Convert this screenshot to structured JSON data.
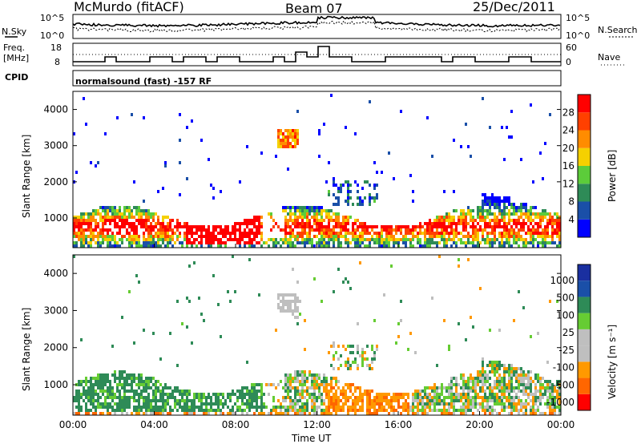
{
  "header": {
    "station": "McMurdo (fitACF)",
    "beam": "Beam 07",
    "date": "25/Dec/2011"
  },
  "top_panels": {
    "noise": {
      "left_label": "N.Sky",
      "right_label": "N.Search",
      "left_ticks": [
        "10^5",
        "10^0"
      ],
      "right_ticks": [
        "10^5",
        "10^0"
      ]
    },
    "freq": {
      "left_label_1": "Freq.",
      "left_label_2": "[MHz]",
      "right_label": "Nave",
      "left_ticks": [
        "18",
        "8"
      ],
      "right_ticks": [
        "60",
        "0"
      ]
    },
    "cpid": {
      "label": "CPID",
      "text": "normalsound (fast) -157 RF"
    }
  },
  "colors": {
    "power_scale": [
      "#0000ff",
      "#1a4fa8",
      "#2e8b57",
      "#5ccc3a",
      "#f5d000",
      "#ff8c00",
      "#ff4000",
      "#ff0000"
    ],
    "velocity_scale": [
      "#ff0000",
      "#ff6600",
      "#ff9900",
      "#bfbfbf",
      "#bfbfbf",
      "#66cc33",
      "#2e8b57",
      "#1a4fa8",
      "#1a2fa0"
    ]
  },
  "chart_data": [
    {
      "type": "heatmap",
      "panel": "power",
      "ylabel": "Slant Range [km]",
      "yticks": [
        "1000",
        "2000",
        "3000",
        "4000"
      ],
      "ylim": [
        180,
        4500
      ],
      "xticks": [
        "00:00",
        "04:00",
        "08:00",
        "12:00",
        "16:00",
        "20:00",
        "00:00"
      ],
      "xlim_hours": [
        0,
        24
      ],
      "colorbar": {
        "label": "Power [dB]",
        "ticks": [
          "4",
          "8",
          "12",
          "16",
          "20",
          "24",
          "28"
        ],
        "range": [
          0,
          32
        ]
      }
    },
    {
      "type": "heatmap",
      "panel": "velocity",
      "ylabel": "Slant Range [km]",
      "yticks": [
        "1000",
        "2000",
        "3000",
        "4000"
      ],
      "ylim": [
        180,
        4500
      ],
      "xticks": [
        "00:00",
        "04:00",
        "08:00",
        "12:00",
        "16:00",
        "20:00",
        "00:00"
      ],
      "xlabel": "Time UT",
      "xlim_hours": [
        0,
        24
      ],
      "colorbar": {
        "label": "Velocity [m s⁻¹]",
        "ticks": [
          "1000",
          "500",
          "100",
          "25",
          "-25",
          "-100",
          "-500",
          "-1000"
        ]
      }
    }
  ]
}
